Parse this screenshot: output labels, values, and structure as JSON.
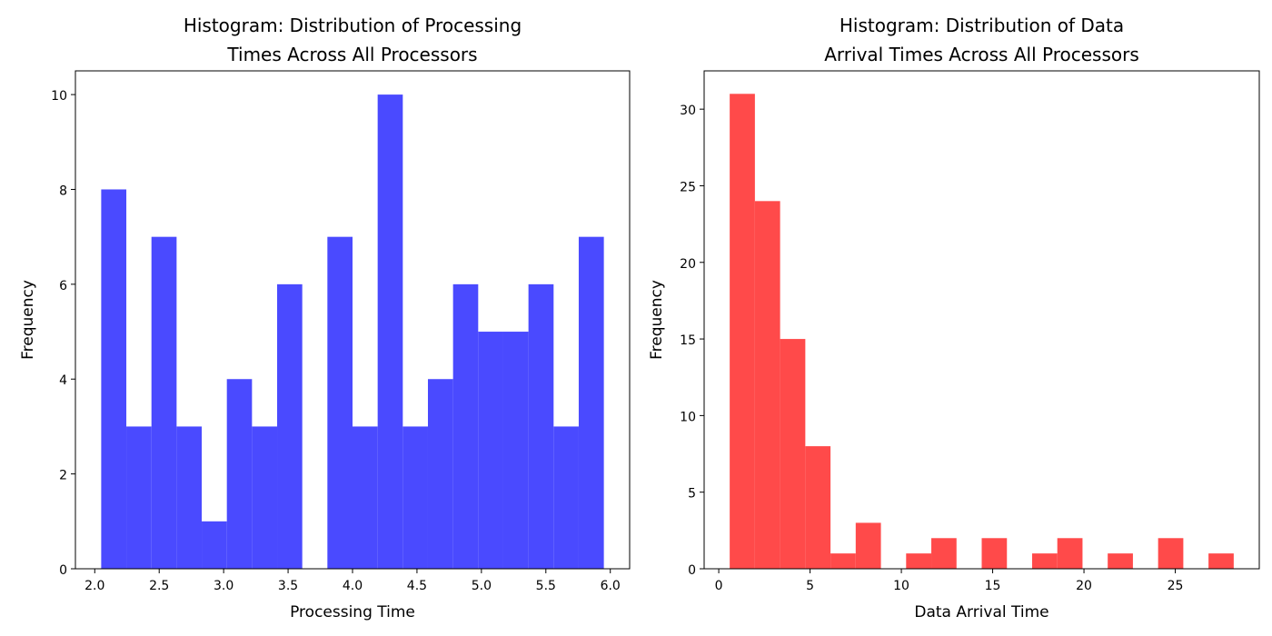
{
  "chart_data": [
    {
      "type": "bar",
      "title_lines": [
        "Histogram: Distribution of Processing",
        "Times Across All Processors"
      ],
      "xlabel": "Processing Time",
      "ylabel": "Frequency",
      "xlim": [
        1.85,
        6.15
      ],
      "ylim": [
        0,
        10.5
      ],
      "xticks": [
        2.0,
        2.5,
        3.0,
        3.5,
        4.0,
        4.5,
        5.0,
        5.5,
        6.0
      ],
      "xtick_labels": [
        "2.0",
        "2.5",
        "3.0",
        "3.5",
        "4.0",
        "4.5",
        "5.0",
        "5.5",
        "6.0"
      ],
      "yticks": [
        0,
        2,
        4,
        6,
        8,
        10
      ],
      "ytick_labels": [
        "0",
        "2",
        "4",
        "6",
        "8",
        "10"
      ],
      "bin_edges": [
        2.05,
        2.245,
        2.44,
        2.635,
        2.83,
        3.025,
        3.22,
        3.415,
        3.61,
        3.805,
        4.0,
        4.195,
        4.39,
        4.585,
        4.78,
        4.975,
        5.17,
        5.365,
        5.56,
        5.755,
        5.95
      ],
      "values": [
        8,
        3,
        7,
        3,
        1,
        4,
        3,
        6,
        0,
        7,
        3,
        10,
        3,
        4,
        6,
        5,
        5,
        6,
        3,
        7
      ],
      "color": "#4a4aff",
      "grid": false
    },
    {
      "type": "bar",
      "title_lines": [
        "Histogram: Distribution of Data",
        "Arrival Times Across All Processors"
      ],
      "xlabel": "Data Arrival Time",
      "ylabel": "Frequency",
      "xlim": [
        -0.8,
        29.6
      ],
      "ylim": [
        0,
        32.5
      ],
      "xticks": [
        0,
        5,
        10,
        15,
        20,
        25
      ],
      "xtick_labels": [
        "0",
        "5",
        "10",
        "15",
        "20",
        "25"
      ],
      "yticks": [
        0,
        5,
        10,
        15,
        20,
        25,
        30
      ],
      "ytick_labels": [
        "0",
        "5",
        "10",
        "15",
        "20",
        "25",
        "30"
      ],
      "bin_edges": [
        0.6,
        1.98,
        3.36,
        4.74,
        6.12,
        7.5,
        8.88,
        10.26,
        11.64,
        13.02,
        14.4,
        15.78,
        17.16,
        18.54,
        19.92,
        21.3,
        22.68,
        24.06,
        25.44,
        26.82,
        28.2
      ],
      "values": [
        31,
        24,
        15,
        8,
        1,
        3,
        0,
        1,
        2,
        0,
        2,
        0,
        1,
        2,
        0,
        1,
        0,
        2,
        0,
        1
      ],
      "color": "#ff4a4a",
      "grid": false
    }
  ]
}
